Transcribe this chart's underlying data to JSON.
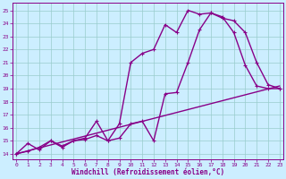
{
  "background_color": "#cceeff",
  "grid_color": "#99cccc",
  "line_color": "#880088",
  "markersize": 2.5,
  "linewidth": 1.0,
  "xlabel": "Windchill (Refroidissement éolien,°C)",
  "xlabel_fontsize": 5.5,
  "ylabel_ticks": [
    14,
    15,
    16,
    17,
    18,
    19,
    20,
    21,
    22,
    23,
    24,
    25
  ],
  "xlabel_ticks": [
    0,
    1,
    2,
    3,
    4,
    5,
    6,
    7,
    8,
    9,
    10,
    11,
    12,
    13,
    14,
    15,
    16,
    17,
    18,
    19,
    20,
    21,
    22,
    23
  ],
  "xlim": [
    -0.3,
    23.3
  ],
  "ylim": [
    13.6,
    25.6
  ],
  "line1_x": [
    0,
    1,
    2,
    3,
    4,
    5,
    6,
    7,
    8,
    9,
    10,
    11,
    12,
    13,
    14,
    15,
    16,
    17,
    18,
    19,
    20,
    21,
    22,
    23
  ],
  "line1_y": [
    14.0,
    14.8,
    14.3,
    15.0,
    14.5,
    15.0,
    15.1,
    15.4,
    15.0,
    16.3,
    21.0,
    21.7,
    22.0,
    23.9,
    23.3,
    25.0,
    24.7,
    24.8,
    24.4,
    24.2,
    23.3,
    21.0,
    19.3,
    19.0
  ],
  "line2_x": [
    0,
    1,
    2,
    3,
    4,
    5,
    6,
    7,
    8,
    9,
    10,
    11,
    12,
    13,
    14,
    15,
    16,
    17,
    18,
    19,
    20,
    21,
    22,
    23
  ],
  "line2_y": [
    14.0,
    14.2,
    14.5,
    15.0,
    14.6,
    15.0,
    15.2,
    16.5,
    15.0,
    15.2,
    16.3,
    16.5,
    15.0,
    18.6,
    18.7,
    21.0,
    23.5,
    24.8,
    24.5,
    23.3,
    20.8,
    19.2,
    19.0,
    19.0
  ],
  "line3_x": [
    0,
    23
  ],
  "line3_y": [
    14.0,
    19.2
  ]
}
